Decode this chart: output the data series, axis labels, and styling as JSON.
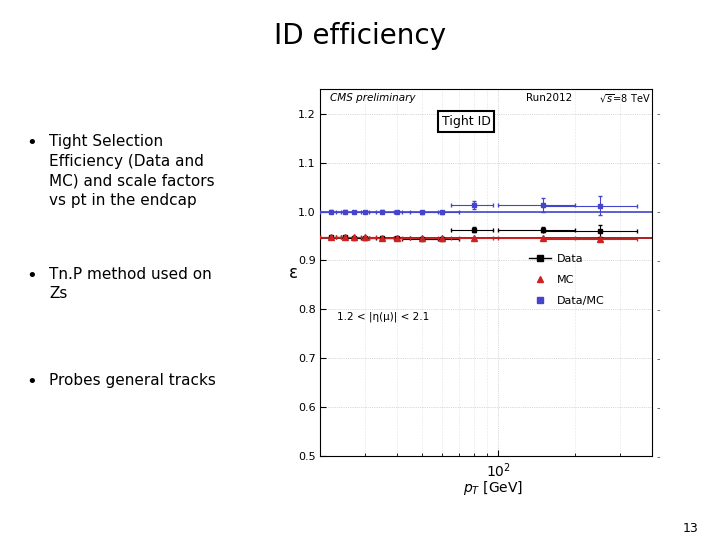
{
  "title": "ID efficiency",
  "bullet_points": [
    "Tight Selection\nEfficiency (Data and\nMC) and scale factors\nvs pt in the endcap",
    "Tn.P method used on\nZs",
    "Probes general tracks"
  ],
  "cms_label": "CMS preliminary",
  "run_label": "Run2012",
  "energy_label": "√s=8 TeV",
  "box_label": "Tight ID",
  "eta_label": "1.2 < |η(μ)| < 2.1",
  "ylabel": "ε",
  "ylim": [
    0.5,
    1.25
  ],
  "xlim_log": [
    20,
    400
  ],
  "yticks": [
    0.5,
    0.6,
    0.7,
    0.8,
    0.9,
    1.0,
    1.1,
    1.2
  ],
  "data_pt": [
    22,
    25,
    27,
    30,
    35,
    40,
    50,
    60,
    80,
    150,
    250
  ],
  "data_eff": [
    0.947,
    0.947,
    0.946,
    0.946,
    0.946,
    0.946,
    0.944,
    0.944,
    0.963,
    0.963,
    0.96
  ],
  "data_yerr": [
    0.003,
    0.003,
    0.002,
    0.002,
    0.002,
    0.002,
    0.003,
    0.003,
    0.005,
    0.005,
    0.012
  ],
  "data_xerr_lo": [
    2,
    2,
    2,
    3,
    4,
    5,
    8,
    10,
    15,
    50,
    100
  ],
  "data_xerr_hi": [
    2,
    2,
    2,
    3,
    4,
    5,
    8,
    10,
    15,
    50,
    100
  ],
  "mc_pt": [
    22,
    25,
    27,
    30,
    35,
    40,
    50,
    60,
    80,
    150,
    250
  ],
  "mc_eff": [
    0.947,
    0.947,
    0.947,
    0.947,
    0.946,
    0.946,
    0.946,
    0.946,
    0.946,
    0.946,
    0.944
  ],
  "mc_xerr_lo": [
    2,
    2,
    2,
    3,
    4,
    5,
    8,
    10,
    15,
    50,
    100
  ],
  "mc_xerr_hi": [
    2,
    2,
    2,
    3,
    4,
    5,
    8,
    10,
    15,
    50,
    100
  ],
  "sf_pt": [
    22,
    25,
    27,
    30,
    35,
    40,
    50,
    60,
    80,
    150,
    250
  ],
  "sf_val": [
    1.0,
    1.0,
    0.999,
    0.999,
    1.0,
    0.999,
    0.998,
    0.998,
    1.013,
    1.013,
    1.012
  ],
  "sf_xerr_lo": [
    2,
    2,
    2,
    3,
    4,
    5,
    8,
    10,
    15,
    50,
    100
  ],
  "sf_xerr_hi": [
    2,
    2,
    2,
    3,
    4,
    5,
    8,
    10,
    15,
    50,
    100
  ],
  "sf_yerr": [
    0.003,
    0.003,
    0.003,
    0.003,
    0.003,
    0.003,
    0.004,
    0.004,
    0.008,
    0.015,
    0.02
  ],
  "data_line_y": 0.9455,
  "mc_line_y": 0.9455,
  "sf_line_y": 0.999,
  "data_color": "#000000",
  "mc_color": "#cc2222",
  "sf_color": "#4444cc",
  "bg_color": "#ffffff",
  "page_num": "13"
}
